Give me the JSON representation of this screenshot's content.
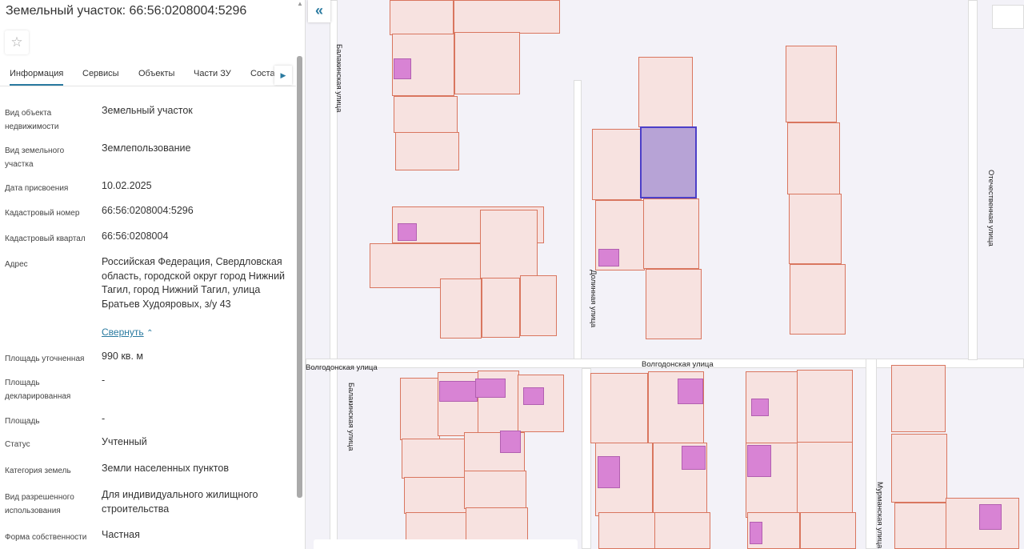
{
  "panel": {
    "title": "Земельный участок: 66:56:0208004:5296",
    "favorite_icon": "star-icon",
    "tabs": [
      "Информация",
      "Сервисы",
      "Объекты",
      "Части ЗУ",
      "Соста"
    ],
    "active_tab": "Информация",
    "fields": [
      {
        "label": "Вид объекта недвижимости",
        "value": "Земельный участок"
      },
      {
        "label": "Вид земельного участка",
        "value": "Землепользование"
      },
      {
        "label": "Дата присвоения",
        "value": "10.02.2025"
      },
      {
        "label": "Кадастровый номер",
        "value": "66:56:0208004:5296"
      },
      {
        "label": "Кадастровый квартал",
        "value": "66:56:0208004"
      },
      {
        "label": "Адрес",
        "value": "Российская Федерация, Свердловская область, городской округ город Нижний Тагил, город Нижний Тагил, улица Братьев Худояровых, з/у 43"
      },
      {
        "label": "Площадь уточненная",
        "value": "990 кв. м"
      },
      {
        "label": "Площадь декларированная",
        "value": "-"
      },
      {
        "label": "Площадь",
        "value": "-"
      },
      {
        "label": "Статус",
        "value": "Учтенный"
      },
      {
        "label": "Категория земель",
        "value": "Земли населенных пунктов"
      },
      {
        "label": "Вид разрешенного использования",
        "value": "Для индивидуального жилищного строительства"
      },
      {
        "label": "Форма собственности",
        "value": "Частная"
      }
    ],
    "collapse_link": "Свернуть"
  },
  "map": {
    "streets": {
      "balakinskaya": "Балакинская улица",
      "dolinnaya": "Долинная улица",
      "volgodonskaya": "Волгодонская улица",
      "otechestvennaya": "Отечественная улица",
      "murmanskaya": "Мурманская улица"
    },
    "selected_parcel_color": "#4c3fc8"
  }
}
